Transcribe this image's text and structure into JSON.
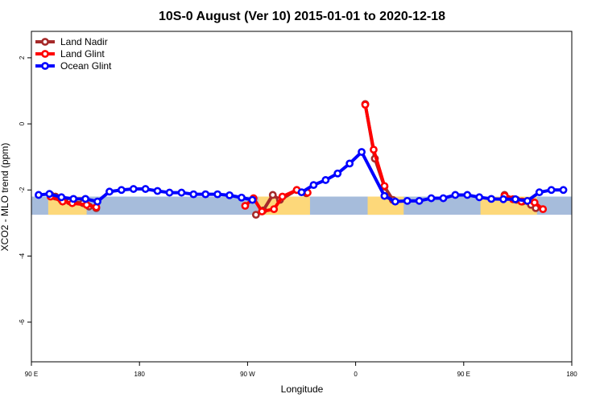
{
  "chart_data": {
    "type": "line",
    "title": "10S-0 August (Ver 10)   2015-01-01 to 2020-12-18",
    "xlabel": "Longitude",
    "ylabel": "XCO2 - MLO trend (ppm)",
    "xlim": [
      90,
      540
    ],
    "ylim": [
      -7.2,
      2.8
    ],
    "x_ticks": [
      {
        "value": 90,
        "label": "90 E"
      },
      {
        "value": 180,
        "label": "180"
      },
      {
        "value": 270,
        "label": "90 W"
      },
      {
        "value": 360,
        "label": "0"
      },
      {
        "value": 450,
        "label": "90 E"
      },
      {
        "value": 540,
        "label": "180"
      }
    ],
    "y_ticks": [
      {
        "value": 2,
        "label": "2"
      },
      {
        "value": 0,
        "label": "0"
      },
      {
        "value": -2,
        "label": "-2"
      },
      {
        "value": -4,
        "label": "-4"
      },
      {
        "value": -6,
        "label": "-6"
      }
    ],
    "legend_position": "top-left",
    "background_band": {
      "ymin": -2.75,
      "ymax": -2.2,
      "ocean_color": "#a6bcdb",
      "land_color": "#fdd87a",
      "land_segments": [
        [
          104,
          136
        ],
        [
          279,
          322
        ],
        [
          370,
          400
        ],
        [
          464,
          511
        ]
      ]
    },
    "series": [
      {
        "name": "Land Nadir",
        "color": "#a52a2a",
        "points": [
          [
            106,
            -2.15
          ],
          [
            110,
            -2.2
          ],
          [
            115,
            -2.3
          ],
          [
            122,
            -2.35
          ],
          [
            133,
            -2.4
          ],
          [
            138,
            -2.5
          ],
          [
            144,
            -2.55
          ],
          [
            277,
            -2.75
          ],
          [
            283,
            -2.62
          ],
          [
            291,
            -2.15
          ],
          [
            297,
            -2.3
          ],
          [
            311,
            -2.0
          ],
          [
            319,
            -2.1
          ],
          [
            368,
            0.6
          ],
          [
            376,
            -1.05
          ],
          [
            384,
            -1.9
          ],
          [
            391,
            -2.3
          ],
          [
            484,
            -2.15
          ],
          [
            494,
            -2.3
          ],
          [
            499,
            -2.35
          ],
          [
            506,
            -2.45
          ],
          [
            510,
            -2.55
          ]
        ]
      },
      {
        "name": "Land Glint",
        "color": "#ff0000",
        "points": [
          [
            106,
            -2.2
          ],
          [
            116,
            -2.35
          ],
          [
            124,
            -2.4
          ],
          [
            136,
            -2.45
          ],
          [
            144,
            -2.52
          ],
          [
            268,
            -2.48
          ],
          [
            275,
            -2.25
          ],
          [
            282,
            -2.65
          ],
          [
            292,
            -2.58
          ],
          [
            299,
            -2.2
          ],
          [
            311,
            -2.0
          ],
          [
            320,
            -2.08
          ],
          [
            368,
            0.58
          ],
          [
            375,
            -0.78
          ],
          [
            384,
            -1.88
          ],
          [
            484,
            -2.18
          ],
          [
            491,
            -2.28
          ],
          [
            498,
            -2.35
          ],
          [
            509,
            -2.38
          ],
          [
            516,
            -2.58
          ]
        ]
      },
      {
        "name": "Ocean Glint",
        "color": "#0000ff",
        "points": [
          [
            96,
            -2.15
          ],
          [
            105,
            -2.12
          ],
          [
            115,
            -2.22
          ],
          [
            125,
            -2.27
          ],
          [
            135,
            -2.27
          ],
          [
            145,
            -2.35
          ],
          [
            155,
            -2.05
          ],
          [
            165,
            -2.0
          ],
          [
            175,
            -1.97
          ],
          [
            185,
            -1.97
          ],
          [
            195,
            -2.03
          ],
          [
            205,
            -2.08
          ],
          [
            215,
            -2.08
          ],
          [
            225,
            -2.13
          ],
          [
            235,
            -2.13
          ],
          [
            245,
            -2.13
          ],
          [
            255,
            -2.16
          ],
          [
            265,
            -2.23
          ],
          [
            274,
            -2.3
          ],
          [
            315,
            -2.07
          ],
          [
            325,
            -1.85
          ],
          [
            335,
            -1.7
          ],
          [
            345,
            -1.5
          ],
          [
            355,
            -1.2
          ],
          [
            365,
            -0.85
          ],
          [
            384,
            -2.18
          ],
          [
            393,
            -2.35
          ],
          [
            403,
            -2.33
          ],
          [
            413,
            -2.33
          ],
          [
            423,
            -2.25
          ],
          [
            433,
            -2.25
          ],
          [
            443,
            -2.15
          ],
          [
            453,
            -2.15
          ],
          [
            463,
            -2.22
          ],
          [
            473,
            -2.27
          ],
          [
            483,
            -2.28
          ],
          [
            493,
            -2.28
          ],
          [
            503,
            -2.33
          ],
          [
            513,
            -2.07
          ],
          [
            523,
            -2.0
          ],
          [
            533,
            -2.0
          ]
        ]
      }
    ]
  }
}
